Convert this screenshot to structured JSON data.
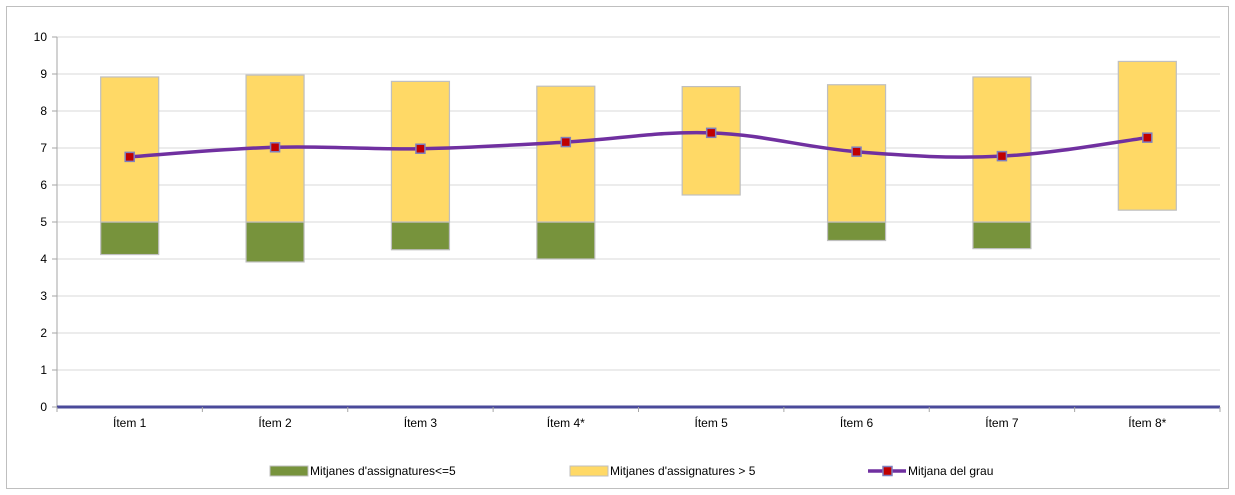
{
  "chart_data": {
    "type": "bar",
    "categories": [
      "Ítem 1",
      "Ítem 2",
      "Ítem 3",
      "Ítem 4*",
      "Ítem 5",
      "Ítem 6",
      "Ítem 7",
      "Ítem 8*"
    ],
    "ylim": [
      0,
      10
    ],
    "yticks": [
      "0",
      "1",
      "2",
      "3",
      "4",
      "5",
      "6",
      "7",
      "8",
      "9",
      "10"
    ],
    "grid": true,
    "legend_position": "bottom",
    "series": [
      {
        "name": "Mitjanes d'assignatures<=5",
        "kind": "floating-bar",
        "color": "#77933c",
        "low": [
          4.12,
          3.92,
          4.25,
          4.0,
          null,
          4.5,
          4.28,
          null
        ],
        "high": [
          5.0,
          5.0,
          5.0,
          5.0,
          null,
          5.0,
          5.0,
          null
        ]
      },
      {
        "name": "Mitjanes d'assignatures > 5",
        "kind": "floating-bar",
        "color": "#ffd966",
        "low": [
          5.0,
          5.0,
          5.0,
          5.0,
          5.73,
          5.0,
          5.0,
          5.32
        ],
        "high": [
          8.92,
          8.97,
          8.8,
          8.67,
          8.66,
          8.71,
          8.92,
          9.34
        ]
      },
      {
        "name": "Mitjana del grau",
        "kind": "line",
        "color": "#7030a0",
        "marker_color": "#c00000",
        "values": [
          6.76,
          7.02,
          6.98,
          7.16,
          7.41,
          6.9,
          6.78,
          7.28
        ]
      }
    ]
  }
}
